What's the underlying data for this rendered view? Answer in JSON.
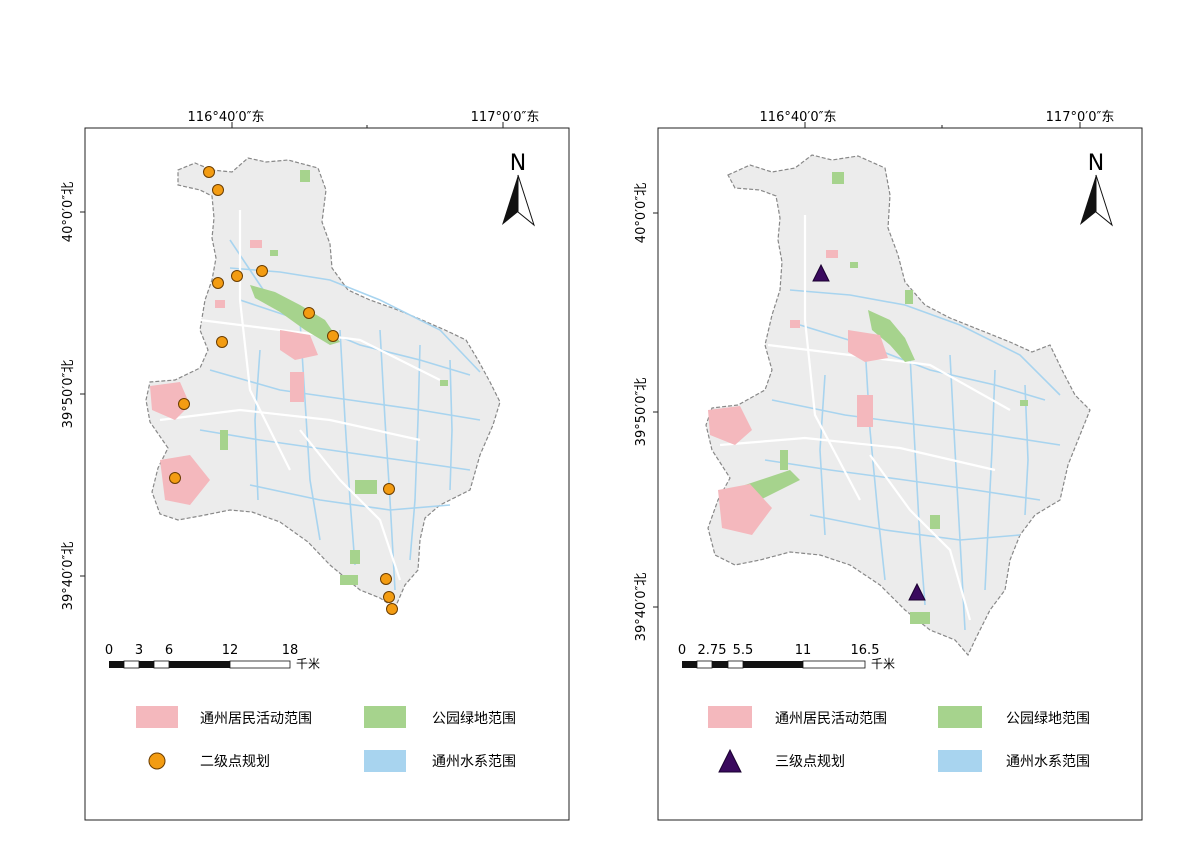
{
  "panels": [
    {
      "id": "left",
      "top_lon_labels": [
        "116°40′0″东",
        "117°0′0″东"
      ],
      "side_lat_labels": [
        "40°0′0″北",
        "39°50′0″北",
        "39°40′0″北"
      ],
      "north_label": "N",
      "scale_ticks": [
        "0",
        "3",
        "6",
        "12",
        "18"
      ],
      "scale_unit": "千米",
      "legend": {
        "residential": "通州居民活动范围",
        "green": "公园绿地范围",
        "points": "二级点规划",
        "water": "通州水系范围"
      },
      "point_marker": "circle",
      "point_count": 14
    },
    {
      "id": "right",
      "top_lon_labels": [
        "116°40′0″东",
        "117°0′0″东"
      ],
      "side_lat_labels": [
        "40°0′0″北",
        "39°50′0″北",
        "39°40′0″北"
      ],
      "north_label": "N",
      "scale_ticks": [
        "0",
        "2.75",
        "5.5",
        "11",
        "16.5"
      ],
      "scale_unit": "千米",
      "legend": {
        "residential": "通州居民活动范围",
        "green": "公园绿地范围",
        "points": "三级点规划",
        "water": "通州水系范围"
      },
      "point_marker": "triangle",
      "point_count": 2
    }
  ],
  "colors": {
    "district_fill": "#ececec",
    "district_border": "#888888",
    "residential": "#f4b8bd",
    "green": "#a6d38d",
    "water": "#a8d4ef",
    "level2_point": "#f39c12",
    "level3_point": "#3a0a5e",
    "road": "#ffffff"
  }
}
